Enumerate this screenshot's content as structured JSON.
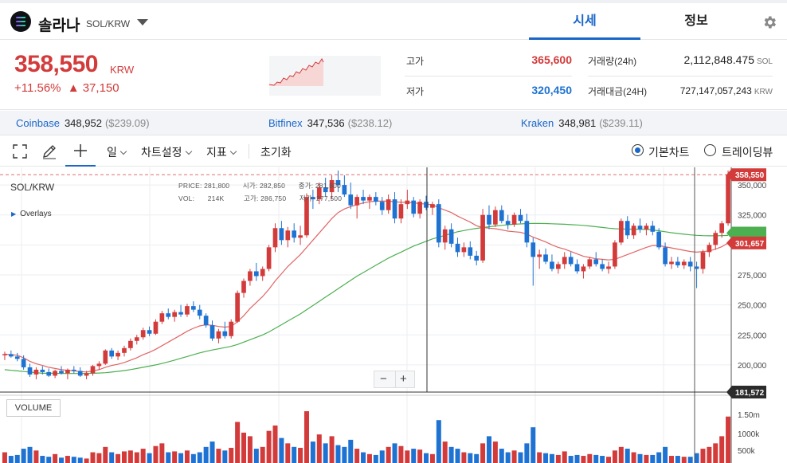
{
  "coin": {
    "name": "솔라나",
    "pair": "SOL/KRW"
  },
  "tabs": {
    "active": "시세",
    "info": "정보"
  },
  "price": {
    "value": "358,550",
    "unit": "KRW",
    "change_pct": "+11.56%",
    "change_amt": "▲ 37,150"
  },
  "stats": {
    "high_label": "고가",
    "high": "365,600",
    "low_label": "저가",
    "low": "320,450",
    "volume_label": "거래량(24h)",
    "volume": "2,112,848.475",
    "volume_unit": "SOL",
    "amount_label": "거래대금(24H)",
    "amount": "727,147,057,243",
    "amount_unit": "KRW"
  },
  "exchanges": [
    {
      "name": "Coinbase",
      "price": "348,952",
      "usd": "($239.09)"
    },
    {
      "name": "Bitfinex",
      "price": "347,536",
      "usd": "($238.12)"
    },
    {
      "name": "Kraken",
      "price": "348,981",
      "usd": "($239.11)"
    }
  ],
  "toolbar": {
    "interval": "일",
    "chart_settings": "차트설정",
    "indicators": "지표",
    "reset": "초기화",
    "basic_chart": "기본차트",
    "tradingview": "트레이딩뷰"
  },
  "chart": {
    "pair_label": "SOL/KRW",
    "overlays": "Overlays",
    "ohlc": {
      "price_label": "PRICE:",
      "price": "281,800",
      "open_label": "시가:",
      "open": "282,850",
      "close_label": "종가:",
      "close": "281,800",
      "vol_label": "VOL:",
      "vol": "214K",
      "high_label": "고가:",
      "high": "286,750",
      "low_label": "저가:",
      "low": "277,500"
    },
    "zoom_out": "−",
    "zoom_in": "+",
    "volume_label": "VOLUME",
    "price_tag": "358,550",
    "ma_tag": "301,657",
    "cursor_tag": "181,572",
    "y_ticks": [
      "350,000",
      "325,000",
      "300,000",
      "275,000",
      "250,000",
      "225,000",
      "200,000"
    ],
    "vol_ticks": [
      "1.50m",
      "1000k",
      "500k"
    ],
    "colors": {
      "up": "#d33b3b",
      "down": "#1e72d2",
      "ma_short": "#e06666",
      "ma_long": "#4caf50"
    }
  },
  "chart_data": {
    "type": "candlestick",
    "ylim": [
      180000,
      362000
    ],
    "candles": [
      [
        208000,
        211000,
        204000,
        209000,
        60
      ],
      [
        209000,
        212000,
        206000,
        207000,
        40
      ],
      [
        207000,
        210000,
        203000,
        205000,
        45
      ],
      [
        205000,
        208000,
        196000,
        198000,
        80
      ],
      [
        198000,
        201000,
        190000,
        192000,
        90
      ],
      [
        192000,
        198000,
        188000,
        196000,
        70
      ],
      [
        196000,
        199000,
        192000,
        194000,
        40
      ],
      [
        194000,
        197000,
        190000,
        191000,
        35
      ],
      [
        191000,
        196000,
        189000,
        195000,
        50
      ],
      [
        195000,
        199000,
        192000,
        193000,
        30
      ],
      [
        193000,
        197000,
        188000,
        196000,
        40
      ],
      [
        196000,
        199000,
        193000,
        195000,
        35
      ],
      [
        195000,
        198000,
        190000,
        191000,
        30
      ],
      [
        191000,
        195000,
        188000,
        193000,
        25
      ],
      [
        193000,
        200000,
        191000,
        199000,
        60
      ],
      [
        199000,
        203000,
        196000,
        201000,
        55
      ],
      [
        201000,
        213000,
        200000,
        212000,
        90
      ],
      [
        212000,
        214000,
        205000,
        207000,
        60
      ],
      [
        207000,
        212000,
        204000,
        210000,
        50
      ],
      [
        210000,
        216000,
        207000,
        214000,
        65
      ],
      [
        214000,
        222000,
        212000,
        220000,
        70
      ],
      [
        220000,
        225000,
        217000,
        223000,
        60
      ],
      [
        223000,
        231000,
        221000,
        229000,
        80
      ],
      [
        229000,
        232000,
        224000,
        226000,
        55
      ],
      [
        226000,
        238000,
        225000,
        236000,
        95
      ],
      [
        236000,
        245000,
        234000,
        243000,
        110
      ],
      [
        243000,
        247000,
        238000,
        240000,
        60
      ],
      [
        240000,
        246000,
        236000,
        244000,
        65
      ],
      [
        244000,
        250000,
        240000,
        242000,
        55
      ],
      [
        242000,
        251000,
        240000,
        249000,
        70
      ],
      [
        249000,
        253000,
        244000,
        246000,
        50
      ],
      [
        246000,
        250000,
        238000,
        241000,
        60
      ],
      [
        241000,
        243000,
        231000,
        233000,
        90
      ],
      [
        233000,
        237000,
        220000,
        222000,
        120
      ],
      [
        222000,
        230000,
        218000,
        228000,
        80
      ],
      [
        228000,
        236000,
        222000,
        224000,
        70
      ],
      [
        224000,
        238000,
        222000,
        236000,
        85
      ],
      [
        236000,
        262000,
        235000,
        260000,
        230
      ],
      [
        260000,
        272000,
        256000,
        270000,
        170
      ],
      [
        270000,
        280000,
        266000,
        278000,
        150
      ],
      [
        278000,
        285000,
        270000,
        274000,
        80
      ],
      [
        274000,
        282000,
        270000,
        280000,
        90
      ],
      [
        280000,
        300000,
        278000,
        298000,
        180
      ],
      [
        298000,
        318000,
        294000,
        314000,
        210
      ],
      [
        314000,
        320000,
        300000,
        304000,
        140
      ],
      [
        304000,
        315000,
        298000,
        312000,
        110
      ],
      [
        312000,
        318000,
        302000,
        306000,
        90
      ],
      [
        306000,
        316000,
        300000,
        308000,
        85
      ],
      [
        308000,
        343000,
        306000,
        340000,
        290
      ],
      [
        340000,
        346000,
        330000,
        338000,
        120
      ],
      [
        338000,
        352000,
        334000,
        348000,
        160
      ],
      [
        348000,
        356000,
        340000,
        344000,
        110
      ],
      [
        344000,
        358000,
        338000,
        354000,
        150
      ],
      [
        354000,
        362000,
        344000,
        350000,
        100
      ],
      [
        350000,
        358000,
        340000,
        342000,
        90
      ],
      [
        342000,
        352000,
        330000,
        333000,
        130
      ],
      [
        333000,
        342000,
        322000,
        340000,
        80
      ],
      [
        340000,
        346000,
        334000,
        337000,
        60
      ],
      [
        337000,
        342000,
        330000,
        340000,
        50
      ],
      [
        340000,
        344000,
        333000,
        336000,
        45
      ],
      [
        336000,
        340000,
        325000,
        329000,
        70
      ],
      [
        329000,
        342000,
        326000,
        338000,
        90
      ],
      [
        338000,
        344000,
        318000,
        322000,
        110
      ],
      [
        322000,
        338000,
        318000,
        334000,
        95
      ],
      [
        334000,
        346000,
        330000,
        337000,
        70
      ],
      [
        337000,
        340000,
        323000,
        326000,
        80
      ],
      [
        326000,
        338000,
        322000,
        336000,
        75
      ],
      [
        336000,
        341000,
        329000,
        331000,
        55
      ],
      [
        331000,
        336000,
        325000,
        334000,
        50
      ],
      [
        334000,
        338000,
        298000,
        302000,
        240
      ],
      [
        302000,
        316000,
        296000,
        313000,
        120
      ],
      [
        313000,
        318000,
        298000,
        301000,
        90
      ],
      [
        301000,
        306000,
        290000,
        294000,
        80
      ],
      [
        294000,
        302000,
        290000,
        298000,
        60
      ],
      [
        298000,
        303000,
        288000,
        291000,
        55
      ],
      [
        291000,
        295000,
        283000,
        287000,
        50
      ],
      [
        287000,
        330000,
        285000,
        325000,
        110
      ],
      [
        325000,
        333000,
        313000,
        317000,
        150
      ],
      [
        317000,
        332000,
        315000,
        329000,
        120
      ],
      [
        329000,
        333000,
        318000,
        320000,
        80
      ],
      [
        320000,
        325000,
        313000,
        317000,
        60
      ],
      [
        317000,
        327000,
        315000,
        325000,
        70
      ],
      [
        325000,
        330000,
        318000,
        320000,
        60
      ],
      [
        320000,
        326000,
        298000,
        302000,
        110
      ],
      [
        302000,
        306000,
        266000,
        290000,
        200
      ],
      [
        290000,
        296000,
        280000,
        292000,
        60
      ],
      [
        292000,
        297000,
        284000,
        286000,
        55
      ],
      [
        286000,
        292000,
        278000,
        280000,
        50
      ],
      [
        280000,
        286000,
        276000,
        284000,
        45
      ],
      [
        284000,
        294000,
        280000,
        290000,
        65
      ],
      [
        290000,
        294000,
        282000,
        284000,
        40
      ],
      [
        284000,
        288000,
        276000,
        278000,
        45
      ],
      [
        278000,
        284000,
        272000,
        282000,
        40
      ],
      [
        282000,
        290000,
        280000,
        288000,
        50
      ],
      [
        288000,
        294000,
        282000,
        284000,
        45
      ],
      [
        284000,
        288000,
        278000,
        280000,
        40
      ],
      [
        280000,
        286000,
        276000,
        282000,
        35
      ],
      [
        282000,
        304000,
        280000,
        302000,
        70
      ],
      [
        302000,
        322000,
        300000,
        320000,
        90
      ],
      [
        320000,
        324000,
        305000,
        308000,
        80
      ],
      [
        308000,
        318000,
        305000,
        316000,
        60
      ],
      [
        316000,
        322000,
        310000,
        313000,
        50
      ],
      [
        313000,
        318000,
        308000,
        316000,
        45
      ],
      [
        316000,
        320000,
        308000,
        311000,
        45
      ],
      [
        311000,
        314000,
        296000,
        298000,
        60
      ],
      [
        298000,
        302000,
        282000,
        284000,
        90
      ],
      [
        284000,
        290000,
        280000,
        286000,
        40
      ],
      [
        286000,
        290000,
        281000,
        283000,
        40
      ],
      [
        283000,
        288000,
        280000,
        286000,
        35
      ],
      [
        286000,
        290000,
        278000,
        282000,
        35
      ],
      [
        282000,
        286000,
        264000,
        280000,
        55
      ],
      [
        280000,
        296000,
        276000,
        294000,
        80
      ],
      [
        294000,
        302000,
        290000,
        300000,
        90
      ],
      [
        300000,
        312000,
        296000,
        310000,
        110
      ],
      [
        310000,
        320000,
        306000,
        318000,
        150
      ],
      [
        318000,
        362000,
        316000,
        358550,
        260
      ]
    ],
    "ma_short": [
      209000,
      208500,
      208000,
      206000,
      203000,
      201000,
      199500,
      198000,
      197000,
      196000,
      195500,
      195000,
      194500,
      194000,
      195000,
      196000,
      198000,
      199500,
      200500,
      202000,
      204000,
      206000,
      208500,
      210500,
      213000,
      216000,
      219000,
      222000,
      225000,
      228000,
      230500,
      232500,
      233500,
      233000,
      232000,
      231500,
      232000,
      236000,
      241000,
      247000,
      252000,
      257000,
      263000,
      270000,
      276000,
      282000,
      287000,
      292000,
      298000,
      304000,
      310000,
      316000,
      322000,
      327000,
      330000,
      332000,
      333500,
      335000,
      336000,
      336500,
      336500,
      336500,
      336000,
      335500,
      335500,
      335000,
      334500,
      334000,
      333500,
      331000,
      329000,
      327000,
      324000,
      321500,
      319000,
      316000,
      314500,
      314000,
      313500,
      312500,
      311500,
      311000,
      310500,
      309000,
      306500,
      304500,
      302500,
      300000,
      298000,
      296500,
      294500,
      292500,
      290500,
      289500,
      288500,
      288000,
      287500,
      288000,
      290000,
      292000,
      294000,
      296000,
      298000,
      299500,
      299500,
      298500,
      297500,
      296500,
      295500,
      294500,
      294000,
      294500,
      295000,
      296500,
      298500,
      301657
    ],
    "ma_long": [
      196000,
      195500,
      195000,
      194500,
      194000,
      193500,
      193000,
      193000,
      193000,
      192800,
      192800,
      192800,
      192800,
      192900,
      193000,
      193200,
      193500,
      194000,
      194600,
      195300,
      196100,
      197000,
      198000,
      199000,
      200000,
      201200,
      202500,
      204000,
      205500,
      207000,
      208500,
      210000,
      211300,
      212400,
      213400,
      214400,
      215500,
      217000,
      219000,
      221000,
      223000,
      225000,
      227500,
      230500,
      233500,
      236500,
      239500,
      242500,
      246000,
      249500,
      253000,
      256500,
      260000,
      263500,
      267000,
      270500,
      274000,
      277000,
      280000,
      283000,
      286000,
      289000,
      291500,
      294000,
      296500,
      299000,
      301000,
      303000,
      305000,
      306500,
      308000,
      309500,
      311000,
      312000,
      313000,
      313800,
      314500,
      315200,
      315800,
      316300,
      316800,
      317200,
      317500,
      317800,
      317900,
      317900,
      317800,
      317600,
      317400,
      317200,
      316900,
      316600,
      316300,
      315800,
      315200,
      314600,
      314000,
      313500,
      313300,
      313200,
      313100,
      313000,
      312900,
      312500,
      311800,
      311000,
      310200,
      309500,
      308900,
      308400,
      308000,
      307700,
      307600,
      307600,
      307700,
      307900
    ]
  }
}
